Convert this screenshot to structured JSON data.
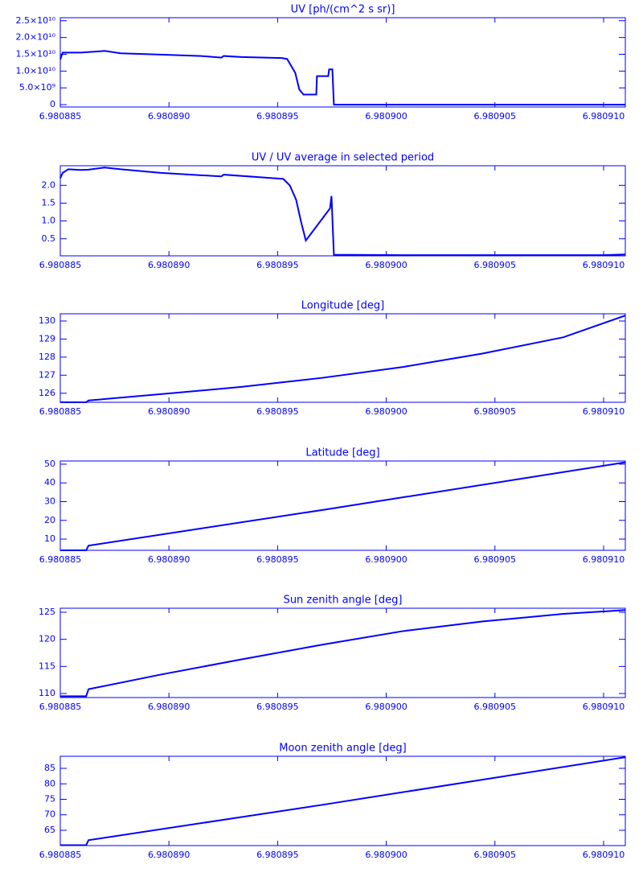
{
  "chart_data": [
    {
      "type": "line",
      "title": "UV [ph/(cm^2 s sr)]",
      "color": "#0000ff",
      "xlim": [
        6.980885,
        6.980911
      ],
      "xticks": [
        6.980885,
        {
          "value": 6.98089,
          "label": "6.980890"
        },
        6.980895,
        {
          "value": 6.9809,
          "label": "6.980900"
        },
        6.980905,
        {
          "value": 6.98091,
          "label": "6.980910"
        }
      ],
      "ylim": [
        -700000000,
        25900000000
      ],
      "yticks": [
        0,
        {
          "value": 5000000000,
          "label": "5.0×10⁹"
        },
        {
          "value": 10000000000,
          "label": "1.0×10¹⁰"
        },
        {
          "value": 15000000000,
          "label": "1.5×10¹⁰"
        },
        {
          "value": 20000000000,
          "label": "2.0×10¹⁰"
        },
        {
          "value": 25000000000,
          "label": "2.5×10¹⁰"
        }
      ],
      "x": [
        6.980885,
        6.98088511,
        6.98088593,
        6.98088704,
        6.98088778,
        6.98088963,
        6.98089148,
        6.98089241,
        6.98089252,
        6.98089333,
        6.98089519,
        6.98089544,
        6.98089563,
        6.98089581,
        6.980896,
        6.98089619,
        6.98089678,
        6.98089681,
        6.98089733,
        6.98089737,
        6.98089752,
        6.98089759,
        6.980911
      ],
      "values": [
        13500000000,
        15500000000,
        15500000000,
        16000000000,
        15300000000,
        14900000000,
        14500000000,
        14000000000,
        14500000000,
        14200000000,
        13900000000,
        13600000000,
        11500000000,
        9500000000,
        4500000000,
        3000000000,
        3000000000,
        8500000000,
        8500000000,
        10500000000,
        10500000000,
        0,
        0
      ]
    },
    {
      "type": "line",
      "title": "UV / UV average in selected period",
      "color": "#0000ff",
      "xlim": [
        6.980885,
        6.980911
      ],
      "xticks": [
        6.980885,
        {
          "value": 6.98089,
          "label": "6.980890"
        },
        6.980895,
        {
          "value": 6.9809,
          "label": "6.980900"
        },
        6.980905,
        {
          "value": 6.98091,
          "label": "6.980910"
        }
      ],
      "ylim": [
        0.02,
        2.55
      ],
      "yticks": [
        0.5,
        {
          "value": 1,
          "label": "1.0"
        },
        1.5,
        {
          "value": 2,
          "label": "2.0"
        }
      ],
      "x": [
        6.980885,
        6.98088511,
        6.98088537,
        6.98088593,
        6.9808863,
        6.98088704,
        6.98088778,
        6.98088963,
        6.98089241,
        6.98089252,
        6.98089481,
        6.98089526,
        6.98089556,
        6.98089585,
        6.98089607,
        6.9808963,
        6.98089741,
        6.98089748,
        6.98089759,
        6.98090074,
        6.98091,
        6.980911
      ],
      "values": [
        2.2,
        2.35,
        2.45,
        2.43,
        2.44,
        2.5,
        2.45,
        2.35,
        2.25,
        2.3,
        2.2,
        2.18,
        2.0,
        1.6,
        1.0,
        0.45,
        1.35,
        1.7,
        0.05,
        0.04,
        0.04,
        0.06
      ]
    },
    {
      "type": "line",
      "title": "Longitude [deg]",
      "color": "#0000ff",
      "xlim": [
        6.980885,
        6.980911
      ],
      "xticks": [
        6.980885,
        {
          "value": 6.98089,
          "label": "6.980890"
        },
        6.980895,
        {
          "value": 6.9809,
          "label": "6.980900"
        },
        6.980905,
        {
          "value": 6.98091,
          "label": "6.980910"
        }
      ],
      "ylim": [
        125.5,
        130.4
      ],
      "yticks": [
        126,
        127,
        128,
        129,
        130
      ],
      "x": [
        6.980885,
        6.98088619,
        6.9808863,
        6.98088963,
        6.98089333,
        6.98089704,
        6.98090074,
        6.98090444,
        6.98090815,
        6.980911
      ],
      "values": [
        125.5,
        125.5,
        125.6,
        125.95,
        126.35,
        126.85,
        127.45,
        128.2,
        129.1,
        130.3
      ]
    },
    {
      "type": "line",
      "title": "Latitude [deg]",
      "color": "#0000ff",
      "xlim": [
        6.980885,
        6.980911
      ],
      "xticks": [
        6.980885,
        {
          "value": 6.98089,
          "label": "6.980890"
        },
        6.980895,
        {
          "value": 6.9809,
          "label": "6.980900"
        },
        6.980905,
        {
          "value": 6.98091,
          "label": "6.980910"
        }
      ],
      "ylim": [
        4,
        51.7
      ],
      "yticks": [
        10,
        20,
        30,
        40,
        50
      ],
      "x": [
        6.980885,
        6.98088619,
        6.9808863,
        6.98089704,
        6.980911
      ],
      "values": [
        4,
        4,
        6.5,
        25.5,
        51
      ]
    },
    {
      "type": "line",
      "title": "Sun zenith angle [deg]",
      "color": "#0000ff",
      "xlim": [
        6.980885,
        6.980911
      ],
      "xticks": [
        6.980885,
        {
          "value": 6.98089,
          "label": "6.980890"
        },
        6.980895,
        {
          "value": 6.9809,
          "label": "6.980900"
        },
        6.980905,
        {
          "value": 6.98091,
          "label": "6.980910"
        }
      ],
      "ylim": [
        109.26,
        125.74
      ],
      "yticks": [
        110,
        115,
        120,
        125
      ],
      "x": [
        6.980885,
        6.98088619,
        6.9808863,
        6.98088963,
        6.98089333,
        6.98089704,
        6.98090074,
        6.98090444,
        6.98090815,
        6.980911
      ],
      "values": [
        109.5,
        109.5,
        110.8,
        113.5,
        116.3,
        119.0,
        121.5,
        123.3,
        124.7,
        125.4
      ]
    },
    {
      "type": "line",
      "title": "Moon zenith angle [deg]",
      "color": "#0000ff",
      "xlim": [
        6.980885,
        6.980911
      ],
      "xticks": [
        6.980885,
        {
          "value": 6.98089,
          "label": "6.980890"
        },
        6.980895,
        {
          "value": 6.9809,
          "label": "6.980900"
        },
        6.980905,
        {
          "value": 6.98091,
          "label": "6.980910"
        }
      ],
      "ylim": [
        60.06,
        88.9
      ],
      "yticks": [
        65,
        70,
        75,
        80,
        85
      ],
      "x": [
        6.980885,
        6.98088619,
        6.9808863,
        6.98089704,
        6.980911
      ],
      "values": [
        60.2,
        60.2,
        61.8,
        73.2,
        88.6
      ]
    }
  ]
}
